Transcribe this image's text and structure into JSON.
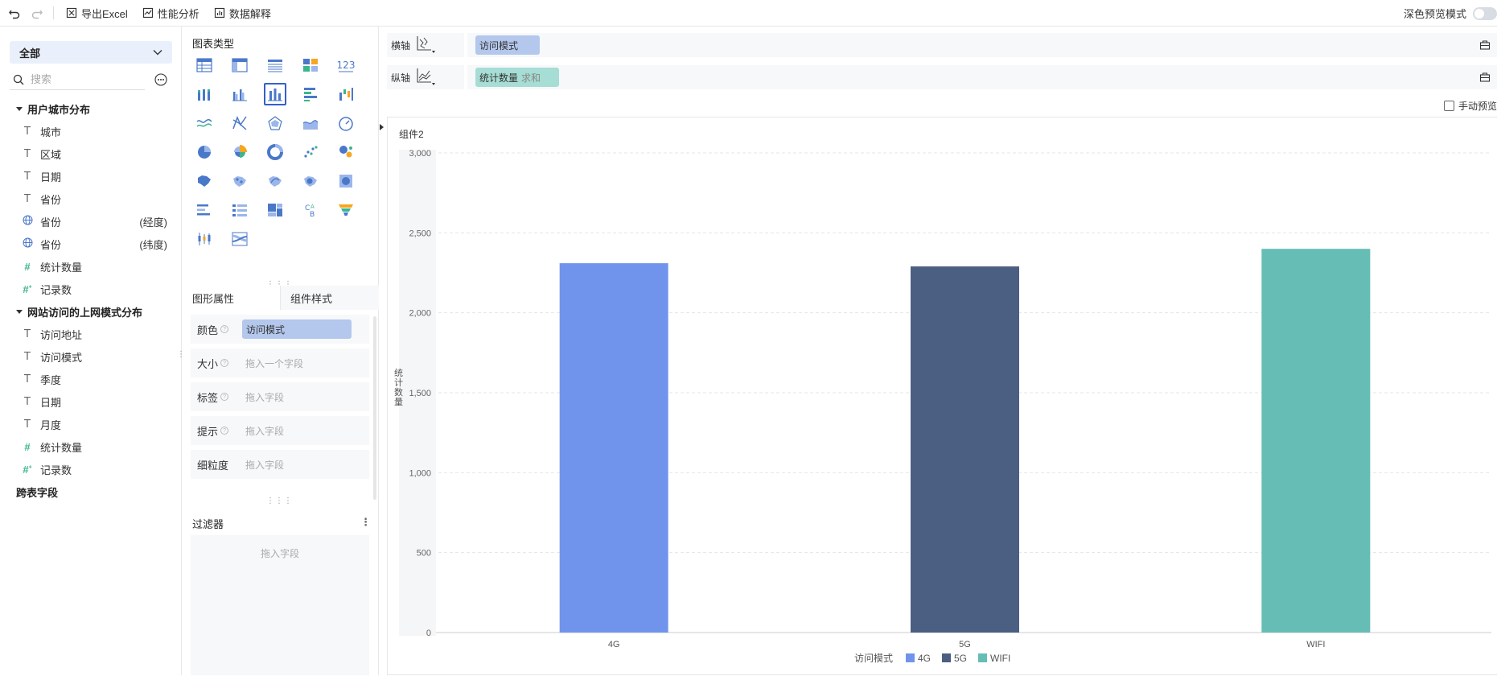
{
  "toolbar": {
    "undo_icon": "undo-icon",
    "redo_icon": "redo-icon",
    "export_excel": "导出Excel",
    "perf_analysis": "性能分析",
    "data_explain": "数据解释",
    "dark_preview_label": "深色预览模式",
    "dark_preview_on": false
  },
  "left_panel": {
    "scope": "全部",
    "search_placeholder": "搜索",
    "groups": [
      {
        "title": "用户城市分布",
        "fields": [
          {
            "type": "text",
            "name": "城市"
          },
          {
            "type": "text",
            "name": "区域"
          },
          {
            "type": "text",
            "name": "日期"
          },
          {
            "type": "text",
            "name": "省份"
          },
          {
            "type": "geo",
            "name": "省份",
            "suffix": "(经度)"
          },
          {
            "type": "geo",
            "name": "省份",
            "suffix": "(纬度)"
          },
          {
            "type": "number",
            "name": "统计数量"
          },
          {
            "type": "number-calc",
            "name": "记录数"
          }
        ]
      },
      {
        "title": "网站访问的上网模式分布",
        "fields": [
          {
            "type": "text",
            "name": "访问地址"
          },
          {
            "type": "text",
            "name": "访问模式"
          },
          {
            "type": "text",
            "name": "季度"
          },
          {
            "type": "text",
            "name": "日期"
          },
          {
            "type": "text",
            "name": "月度"
          },
          {
            "type": "number",
            "name": "统计数量"
          },
          {
            "type": "number-calc",
            "name": "记录数"
          }
        ]
      },
      {
        "title": "跨表字段",
        "collapsed": true
      }
    ]
  },
  "mid_panel": {
    "chart_type_title": "图表类型",
    "number_chart_label": "123",
    "tabs": [
      "图形属性",
      "组件样式"
    ],
    "props": [
      {
        "label": "颜色",
        "pill": "访问模式"
      },
      {
        "label": "大小",
        "placeholder": "拖入一个字段"
      },
      {
        "label": "标签",
        "placeholder": "拖入字段"
      },
      {
        "label": "提示",
        "placeholder": "拖入字段"
      },
      {
        "label": "细粒度",
        "placeholder": "拖入字段"
      }
    ],
    "filter_title": "过滤器",
    "filter_placeholder": "拖入字段"
  },
  "axes": {
    "x_label": "横轴",
    "x_field": "访问模式",
    "y_label": "纵轴",
    "y_field": "统计数量",
    "y_agg": "求和",
    "manual_preview": "手动预览"
  },
  "component_title": "组件2",
  "colors": {
    "accent": "#3460c8",
    "bar_4g": "#7094ec",
    "bar_5g": "#4b5f82",
    "bar_wifi": "#65bdb6"
  },
  "chart_data": {
    "type": "bar",
    "categories": [
      "4G",
      "5G",
      "WIFI"
    ],
    "values": [
      2310,
      2290,
      2400
    ],
    "ylabel": "统计数量",
    "ylim": [
      0,
      3000
    ],
    "yticks": [
      "0",
      "500",
      "1,000",
      "1,500",
      "2,000",
      "2,500",
      "3,000"
    ],
    "legend_title": "访问模式",
    "legend": [
      "4G",
      "5G",
      "WIFI"
    ],
    "grid": true
  }
}
